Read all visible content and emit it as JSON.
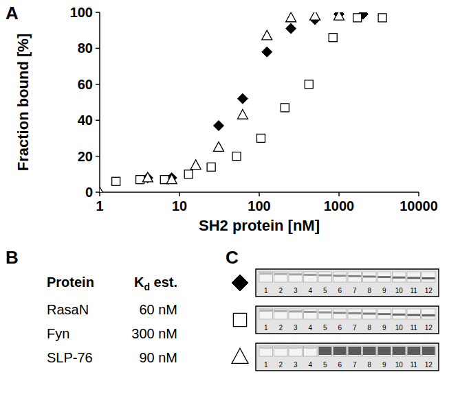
{
  "panel_labels": [
    "A",
    "B",
    "C"
  ],
  "chart_data": {
    "type": "scatter",
    "x_label": "SH2 protein [nM]",
    "y_label": "Fraction bound [%]",
    "log": "x",
    "xlim": [
      1,
      10000
    ],
    "xticks": [
      1,
      10,
      100,
      1000,
      10000
    ],
    "ylim": [
      0,
      100
    ],
    "yticks": [
      0,
      20,
      40,
      60,
      80,
      100
    ],
    "grid": false,
    "series": [
      {
        "marker": "diamond",
        "color": "#000000",
        "x": [
          4,
          8,
          31,
          62,
          125,
          250,
          500,
          1000,
          2000
        ],
        "values": [
          8,
          8,
          37,
          52,
          78,
          91,
          96,
          99,
          99
        ]
      },
      {
        "marker": "square",
        "color": "#000000",
        "x": [
          1.6,
          3.2,
          6.5,
          13,
          25,
          52,
          105,
          210,
          420,
          840,
          1700,
          3500
        ],
        "values": [
          6,
          7,
          7,
          10,
          14,
          20,
          30,
          47,
          60,
          86,
          97,
          97
        ]
      },
      {
        "marker": "triangle",
        "color": "#000000",
        "x": [
          1,
          4,
          8,
          16,
          31,
          62,
          125,
          250,
          500,
          1000
        ],
        "values": [
          0,
          8,
          7,
          15,
          25,
          43,
          87,
          97,
          98,
          98
        ]
      }
    ]
  },
  "table": {
    "header": {
      "protein": "Protein",
      "kd_main": "K",
      "kd_sub": "d",
      "kd_rest": " est."
    },
    "rows": [
      [
        "RasaN",
        "60 nM"
      ],
      [
        "Fyn",
        "300 nM"
      ],
      [
        "SLP-76",
        "90 nM"
      ]
    ]
  },
  "gel": {
    "rows": [
      {
        "marker": "diamond"
      },
      {
        "marker": "square"
      },
      {
        "marker": "triangle"
      }
    ],
    "lanes": [
      1,
      2,
      3,
      4,
      5,
      6,
      7,
      8,
      9,
      10,
      11,
      12
    ]
  }
}
